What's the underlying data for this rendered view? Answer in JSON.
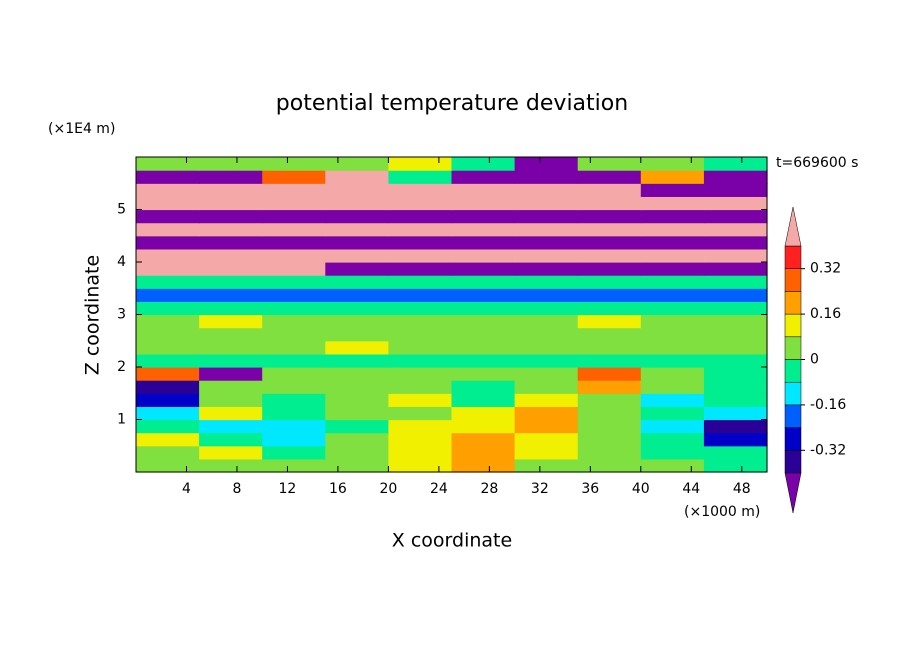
{
  "chart_data": {
    "type": "contour",
    "title": "potential temperature deviation",
    "x_label": "X coordinate",
    "y_label": "Z coordinate",
    "x_unit": "(×1000 m)",
    "y_unit": "(×1E4 m)",
    "annotation": "t=669600 s",
    "xlim": [
      0,
      50
    ],
    "ylim": [
      0,
      6
    ],
    "xticks": [
      4,
      8,
      12,
      16,
      20,
      24,
      28,
      32,
      36,
      40,
      44,
      48
    ],
    "yticks": [
      1,
      2,
      3,
      4,
      5
    ],
    "levels": [
      -0.4,
      -0.32,
      -0.24,
      -0.16,
      -0.08,
      0,
      0.08,
      0.16,
      0.24,
      0.32,
      0.4
    ],
    "colors": [
      "#7a00a8",
      "#2a0096",
      "#0000c8",
      "#0060ff",
      "#00e8ff",
      "#00ee90",
      "#80e040",
      "#f0f000",
      "#ffa000",
      "#ff6000",
      "#ff2020",
      "#f5a8a8"
    ],
    "colorbar_ticks": [
      -0.32,
      -0.16,
      0,
      0.16,
      0.32
    ],
    "field": [
      [
        0.04,
        0.04,
        0.04,
        0.04,
        0.12,
        0.2,
        0.04,
        0.04,
        0.04,
        -0.04
      ],
      [
        0.04,
        0.12,
        -0.04,
        0.04,
        0.12,
        0.2,
        0.12,
        0.04,
        -0.04,
        -0.04
      ],
      [
        0.12,
        -0.04,
        -0.12,
        0.04,
        0.12,
        0.2,
        0.12,
        0.04,
        -0.04,
        -0.28
      ],
      [
        -0.04,
        -0.12,
        -0.12,
        -0.04,
        0.12,
        0.12,
        0.2,
        0.04,
        -0.12,
        -0.36
      ],
      [
        -0.12,
        0.12,
        -0.04,
        0.04,
        0.04,
        0.12,
        0.2,
        0.04,
        -0.04,
        -0.12
      ],
      [
        -0.28,
        0.04,
        -0.04,
        0.04,
        0.12,
        -0.04,
        0.12,
        0.04,
        -0.12,
        -0.04
      ],
      [
        -0.36,
        0.04,
        0.04,
        0.04,
        0.04,
        -0.04,
        0.04,
        0.2,
        0.04,
        -0.04
      ],
      [
        0.28,
        -0.45,
        0.04,
        0.04,
        0.04,
        0.04,
        0.04,
        0.28,
        0.04,
        -0.04
      ],
      [
        -0.04,
        -0.04,
        -0.04,
        -0.04,
        -0.04,
        -0.04,
        -0.04,
        -0.04,
        -0.04,
        -0.04
      ],
      [
        0.04,
        0.04,
        0.04,
        0.12,
        0.04,
        0.04,
        0.04,
        0.04,
        0.04,
        0.04
      ],
      [
        0.04,
        0.04,
        0.04,
        0.04,
        0.04,
        0.04,
        0.04,
        0.04,
        0.04,
        0.04
      ],
      [
        0.04,
        0.12,
        0.04,
        0.04,
        0.04,
        0.04,
        0.04,
        0.12,
        0.04,
        0.04
      ],
      [
        -0.04,
        -0.04,
        -0.04,
        -0.04,
        -0.04,
        -0.04,
        -0.04,
        -0.04,
        -0.04,
        -0.04
      ],
      [
        -0.2,
        -0.2,
        -0.2,
        -0.2,
        -0.2,
        -0.2,
        -0.2,
        -0.2,
        -0.2,
        -0.2
      ],
      [
        -0.04,
        -0.04,
        -0.04,
        -0.04,
        -0.04,
        -0.04,
        -0.04,
        -0.04,
        -0.04,
        -0.04
      ],
      [
        0.45,
        0.45,
        0.45,
        -0.45,
        -0.45,
        -0.45,
        -0.45,
        -0.45,
        -0.45,
        -0.45
      ],
      [
        0.45,
        0.45,
        0.45,
        0.45,
        0.45,
        0.45,
        0.45,
        0.45,
        0.45,
        0.45
      ],
      [
        -0.45,
        -0.45,
        -0.45,
        -0.45,
        -0.45,
        -0.45,
        -0.45,
        -0.45,
        -0.45,
        -0.45
      ],
      [
        0.45,
        0.45,
        0.45,
        0.45,
        0.45,
        0.45,
        0.45,
        0.45,
        0.45,
        0.45
      ],
      [
        -0.45,
        -0.45,
        -0.45,
        -0.45,
        -0.45,
        -0.45,
        -0.45,
        -0.45,
        -0.45,
        -0.45
      ],
      [
        0.45,
        0.45,
        0.45,
        0.45,
        0.45,
        0.45,
        0.45,
        0.45,
        0.45,
        0.45
      ],
      [
        0.45,
        0.45,
        0.45,
        0.45,
        0.45,
        0.45,
        0.45,
        0.45,
        -0.45,
        -0.45
      ],
      [
        -0.45,
        -0.45,
        0.28,
        0.45,
        -0.04,
        -0.45,
        -0.45,
        -0.45,
        0.2,
        -0.45
      ],
      [
        0.04,
        0.04,
        0.04,
        0.04,
        0.12,
        -0.04,
        -0.45,
        0.04,
        0.04,
        -0.04
      ]
    ]
  }
}
